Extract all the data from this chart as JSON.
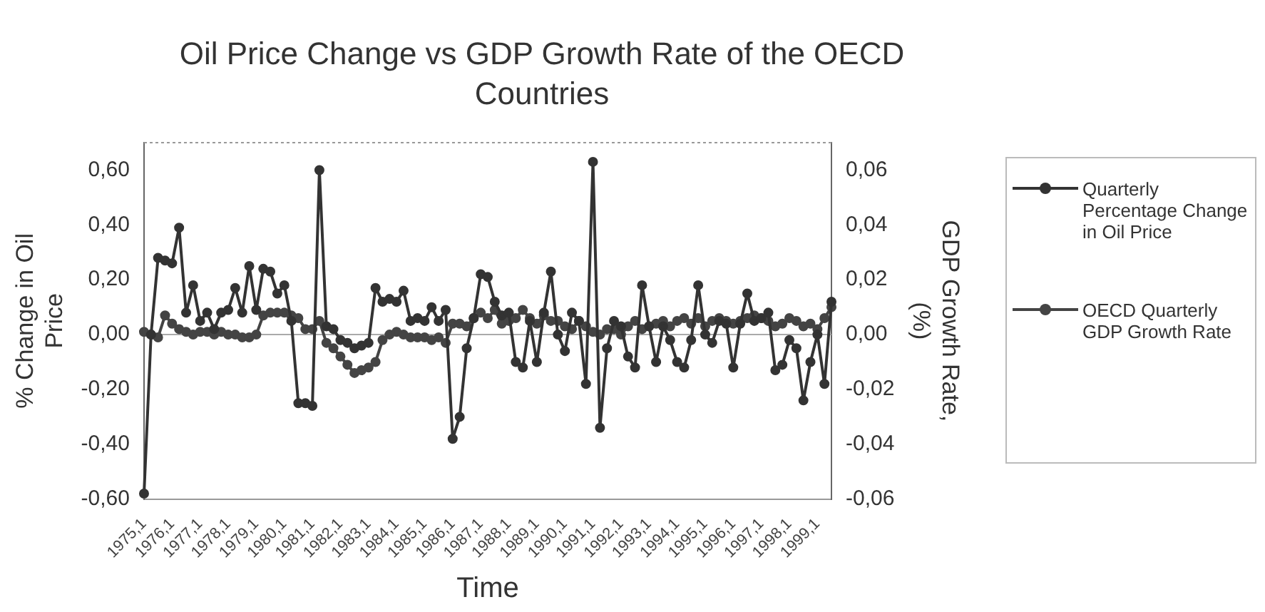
{
  "chart_data": {
    "type": "line",
    "title": "Oil Price Change vs GDP Growth Rate of the OECD Countries",
    "xlabel": "Time",
    "ylabel": "% Change in Oil Price",
    "y2label": "GDP Growth Rate, (%)",
    "categories": [
      "1975,1",
      null,
      null,
      null,
      "1976,1",
      null,
      null,
      null,
      "1977,1",
      null,
      null,
      null,
      "1978,1",
      null,
      null,
      null,
      "1979,1",
      null,
      null,
      null,
      "1980,1",
      null,
      null,
      null,
      "1981,1",
      null,
      null,
      null,
      "1982,1",
      null,
      null,
      null,
      "1983,1",
      null,
      null,
      null,
      "1984,1",
      null,
      null,
      null,
      "1985,1",
      null,
      null,
      null,
      "1986,1",
      null,
      null,
      null,
      "1987,1",
      null,
      null,
      null,
      "1988,1",
      null,
      null,
      null,
      "1989,1",
      null,
      null,
      null,
      "1990,1",
      null,
      null,
      null,
      "1991,1",
      null,
      null,
      null,
      "1992,1",
      null,
      null,
      null,
      "1993,1",
      null,
      null,
      null,
      "1994,1",
      null,
      null,
      null,
      "1995,1",
      null,
      null,
      null,
      "1996,1",
      null,
      null,
      null,
      "1997,1",
      null,
      null,
      null,
      "1998,1",
      null,
      null,
      null,
      "1999,1",
      null,
      null
    ],
    "series": [
      {
        "name": "Quarterly Percentage Change in Oil Price",
        "color": "#333333",
        "values": [
          -0.58,
          0.0,
          0.28,
          0.27,
          0.26,
          0.39,
          0.08,
          0.18,
          0.05,
          0.08,
          0.02,
          0.08,
          0.09,
          0.17,
          0.08,
          0.25,
          0.09,
          0.24,
          0.23,
          0.15,
          0.18,
          0.05,
          -0.25,
          -0.25,
          -0.26,
          0.6,
          0.03,
          0.02,
          -0.02,
          -0.03,
          -0.05,
          -0.04,
          -0.03,
          0.17,
          0.12,
          0.13,
          0.12,
          0.16,
          0.05,
          0.06,
          0.05,
          0.1,
          0.05,
          0.09,
          -0.38,
          -0.3,
          -0.05,
          0.06,
          0.22,
          0.21,
          0.12,
          0.07,
          0.08,
          -0.1,
          -0.12,
          0.05,
          -0.1,
          0.08,
          0.23,
          0.0,
          -0.06,
          0.08,
          0.05,
          -0.18,
          0.63,
          -0.34,
          -0.05,
          0.05,
          0.03,
          -0.08,
          -0.12,
          0.18,
          0.03,
          -0.1,
          0.03,
          -0.02,
          -0.1,
          -0.12,
          -0.02,
          0.18,
          0.0,
          -0.03,
          0.05,
          0.04,
          -0.12,
          0.04,
          0.15,
          0.05,
          0.06,
          0.08,
          -0.13,
          -0.11,
          -0.02,
          -0.05,
          -0.24,
          -0.1,
          0.0,
          -0.18,
          0.12
        ]
      },
      {
        "name": "OECD Quarterly GDP Growth Rate",
        "color": "#444444",
        "axis": "y2",
        "values": [
          0.001,
          0.0,
          -0.001,
          0.007,
          0.004,
          0.002,
          0.001,
          0.0,
          0.001,
          0.001,
          0.0,
          0.001,
          0.0,
          0.0,
          -0.001,
          -0.001,
          0.0,
          0.007,
          0.008,
          0.008,
          0.008,
          0.007,
          0.006,
          0.002,
          0.002,
          0.005,
          -0.003,
          -0.005,
          -0.008,
          -0.011,
          -0.014,
          -0.013,
          -0.012,
          -0.01,
          -0.002,
          0.0,
          0.001,
          0.0,
          -0.001,
          -0.001,
          -0.001,
          -0.002,
          -0.001,
          -0.003,
          0.004,
          0.004,
          0.003,
          0.006,
          0.008,
          0.006,
          0.009,
          0.004,
          0.005,
          0.006,
          0.009,
          0.006,
          0.004,
          0.007,
          0.005,
          0.005,
          0.003,
          0.002,
          0.005,
          0.003,
          0.001,
          0.0,
          0.002,
          0.002,
          0.0,
          0.003,
          0.005,
          0.002,
          0.003,
          0.004,
          0.005,
          0.003,
          0.005,
          0.006,
          0.004,
          0.006,
          0.003,
          0.005,
          0.006,
          0.005,
          0.004,
          0.005,
          0.006,
          0.007,
          0.006,
          0.005,
          0.003,
          0.004,
          0.006,
          0.005,
          0.003,
          0.004,
          0.002,
          0.006,
          0.01
        ]
      }
    ],
    "ylim": [
      -0.6,
      0.7
    ],
    "yticks": [
      {
        "value": -0.6,
        "label": "-0,60"
      },
      {
        "value": -0.4,
        "label": "-0,40"
      },
      {
        "value": -0.2,
        "label": "-0,20"
      },
      {
        "value": 0,
        "label": "0,00"
      },
      {
        "value": 0.2,
        "label": "0,20"
      },
      {
        "value": 0.4,
        "label": "0,40"
      },
      {
        "value": 0.6,
        "label": "0,60"
      }
    ],
    "y2lim": [
      -0.06,
      0.07
    ],
    "y2ticks": [
      {
        "value": -0.06,
        "label": "-0,06"
      },
      {
        "value": -0.04,
        "label": "-0,04"
      },
      {
        "value": -0.02,
        "label": "-0,02"
      },
      {
        "value": 0,
        "label": "0,00"
      },
      {
        "value": 0.02,
        "label": "0,02"
      },
      {
        "value": 0.04,
        "label": "0,04"
      },
      {
        "value": 0.06,
        "label": "0,06"
      }
    ],
    "ref_lines": [
      {
        "axis": "y",
        "value": 0,
        "color": "#aaaaaa"
      }
    ],
    "grid": false,
    "legend": "right",
    "marker": "circle",
    "line_style": "solid"
  }
}
